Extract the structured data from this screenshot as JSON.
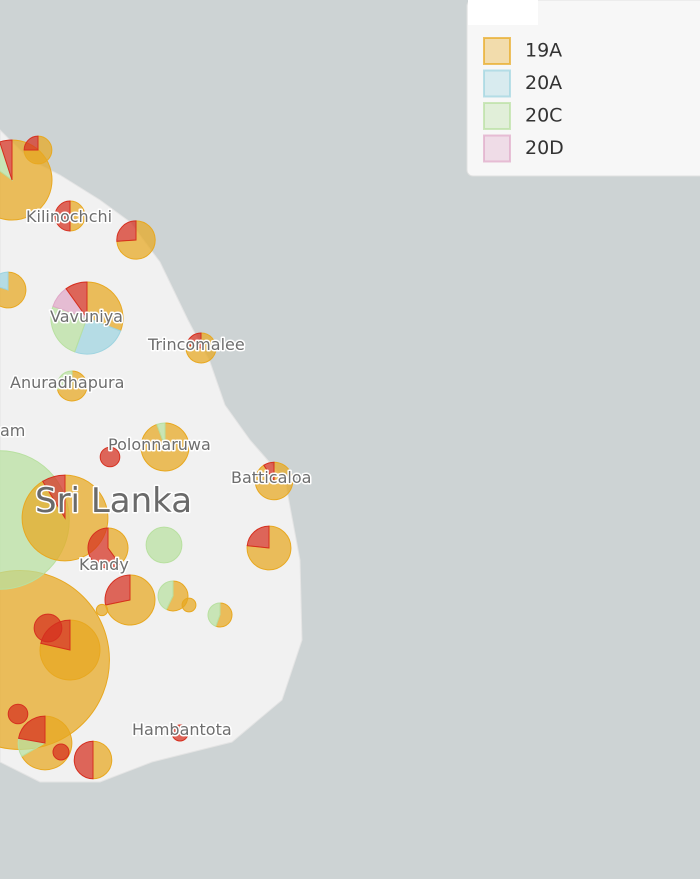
{
  "map": {
    "places": [
      "Kilinochchi",
      "Vavuniya",
      "Trincomalee",
      "Anuradhapura",
      "am",
      "Polonnaruwa",
      "Batticaloa",
      "Sri Lanka",
      "Kandy",
      "Hambantota"
    ],
    "clades": [
      {
        "name": "19A",
        "color": "#e8a820"
      },
      {
        "name": "20A",
        "color": "#9ed4e0"
      },
      {
        "name": "20C",
        "color": "#b8e0a0"
      },
      {
        "name": "20D",
        "color": "#e0a8c8"
      },
      {
        "color": "#d62f1f"
      }
    ],
    "pies": [
      [
        500,
        0,
        0,
        0,
        0
      ],
      [
        0,
        0,
        300,
        0,
        0
      ],
      [
        105,
        0,
        0,
        0,
        10
      ],
      [
        85,
        0,
        10,
        0,
        5
      ],
      [
        25,
        20,
        20,
        8,
        8
      ],
      [
        44,
        0,
        0,
        0,
        12
      ],
      [
        30,
        0,
        5,
        0,
        10
      ],
      [
        28,
        0,
        0,
        0,
        11
      ],
      [
        34,
        0,
        2,
        0,
        0
      ],
      [
        23,
        0,
        0,
        0,
        7
      ],
      [
        10,
        0,
        0,
        0,
        15
      ],
      [
        20,
        0,
        0,
        0,
        2
      ],
      [
        16,
        4,
        0,
        0,
        0
      ],
      [
        0,
        0,
        20,
        0,
        0
      ],
      [
        17,
        0,
        0,
        0,
        6
      ],
      [
        11,
        0,
        0,
        0,
        11
      ],
      [
        9,
        0,
        0,
        0,
        3
      ],
      [
        7,
        0,
        0,
        0,
        7
      ],
      [
        11,
        0,
        0,
        0,
        3
      ],
      [
        10,
        0,
        4,
        0,
        0
      ],
      [
        8,
        0,
        6,
        0,
        0
      ],
      [
        0,
        0,
        0,
        0,
        12
      ],
      [
        5,
        0,
        4,
        0,
        0
      ],
      [
        0,
        0,
        0,
        0,
        6
      ],
      [
        0,
        0,
        0,
        0,
        6
      ],
      [
        3,
        0,
        0,
        0,
        0
      ],
      [
        0,
        0,
        0,
        0,
        4
      ],
      [
        0,
        0,
        0,
        0,
        4
      ],
      [
        2,
        0,
        0,
        0,
        0
      ]
    ]
  }
}
